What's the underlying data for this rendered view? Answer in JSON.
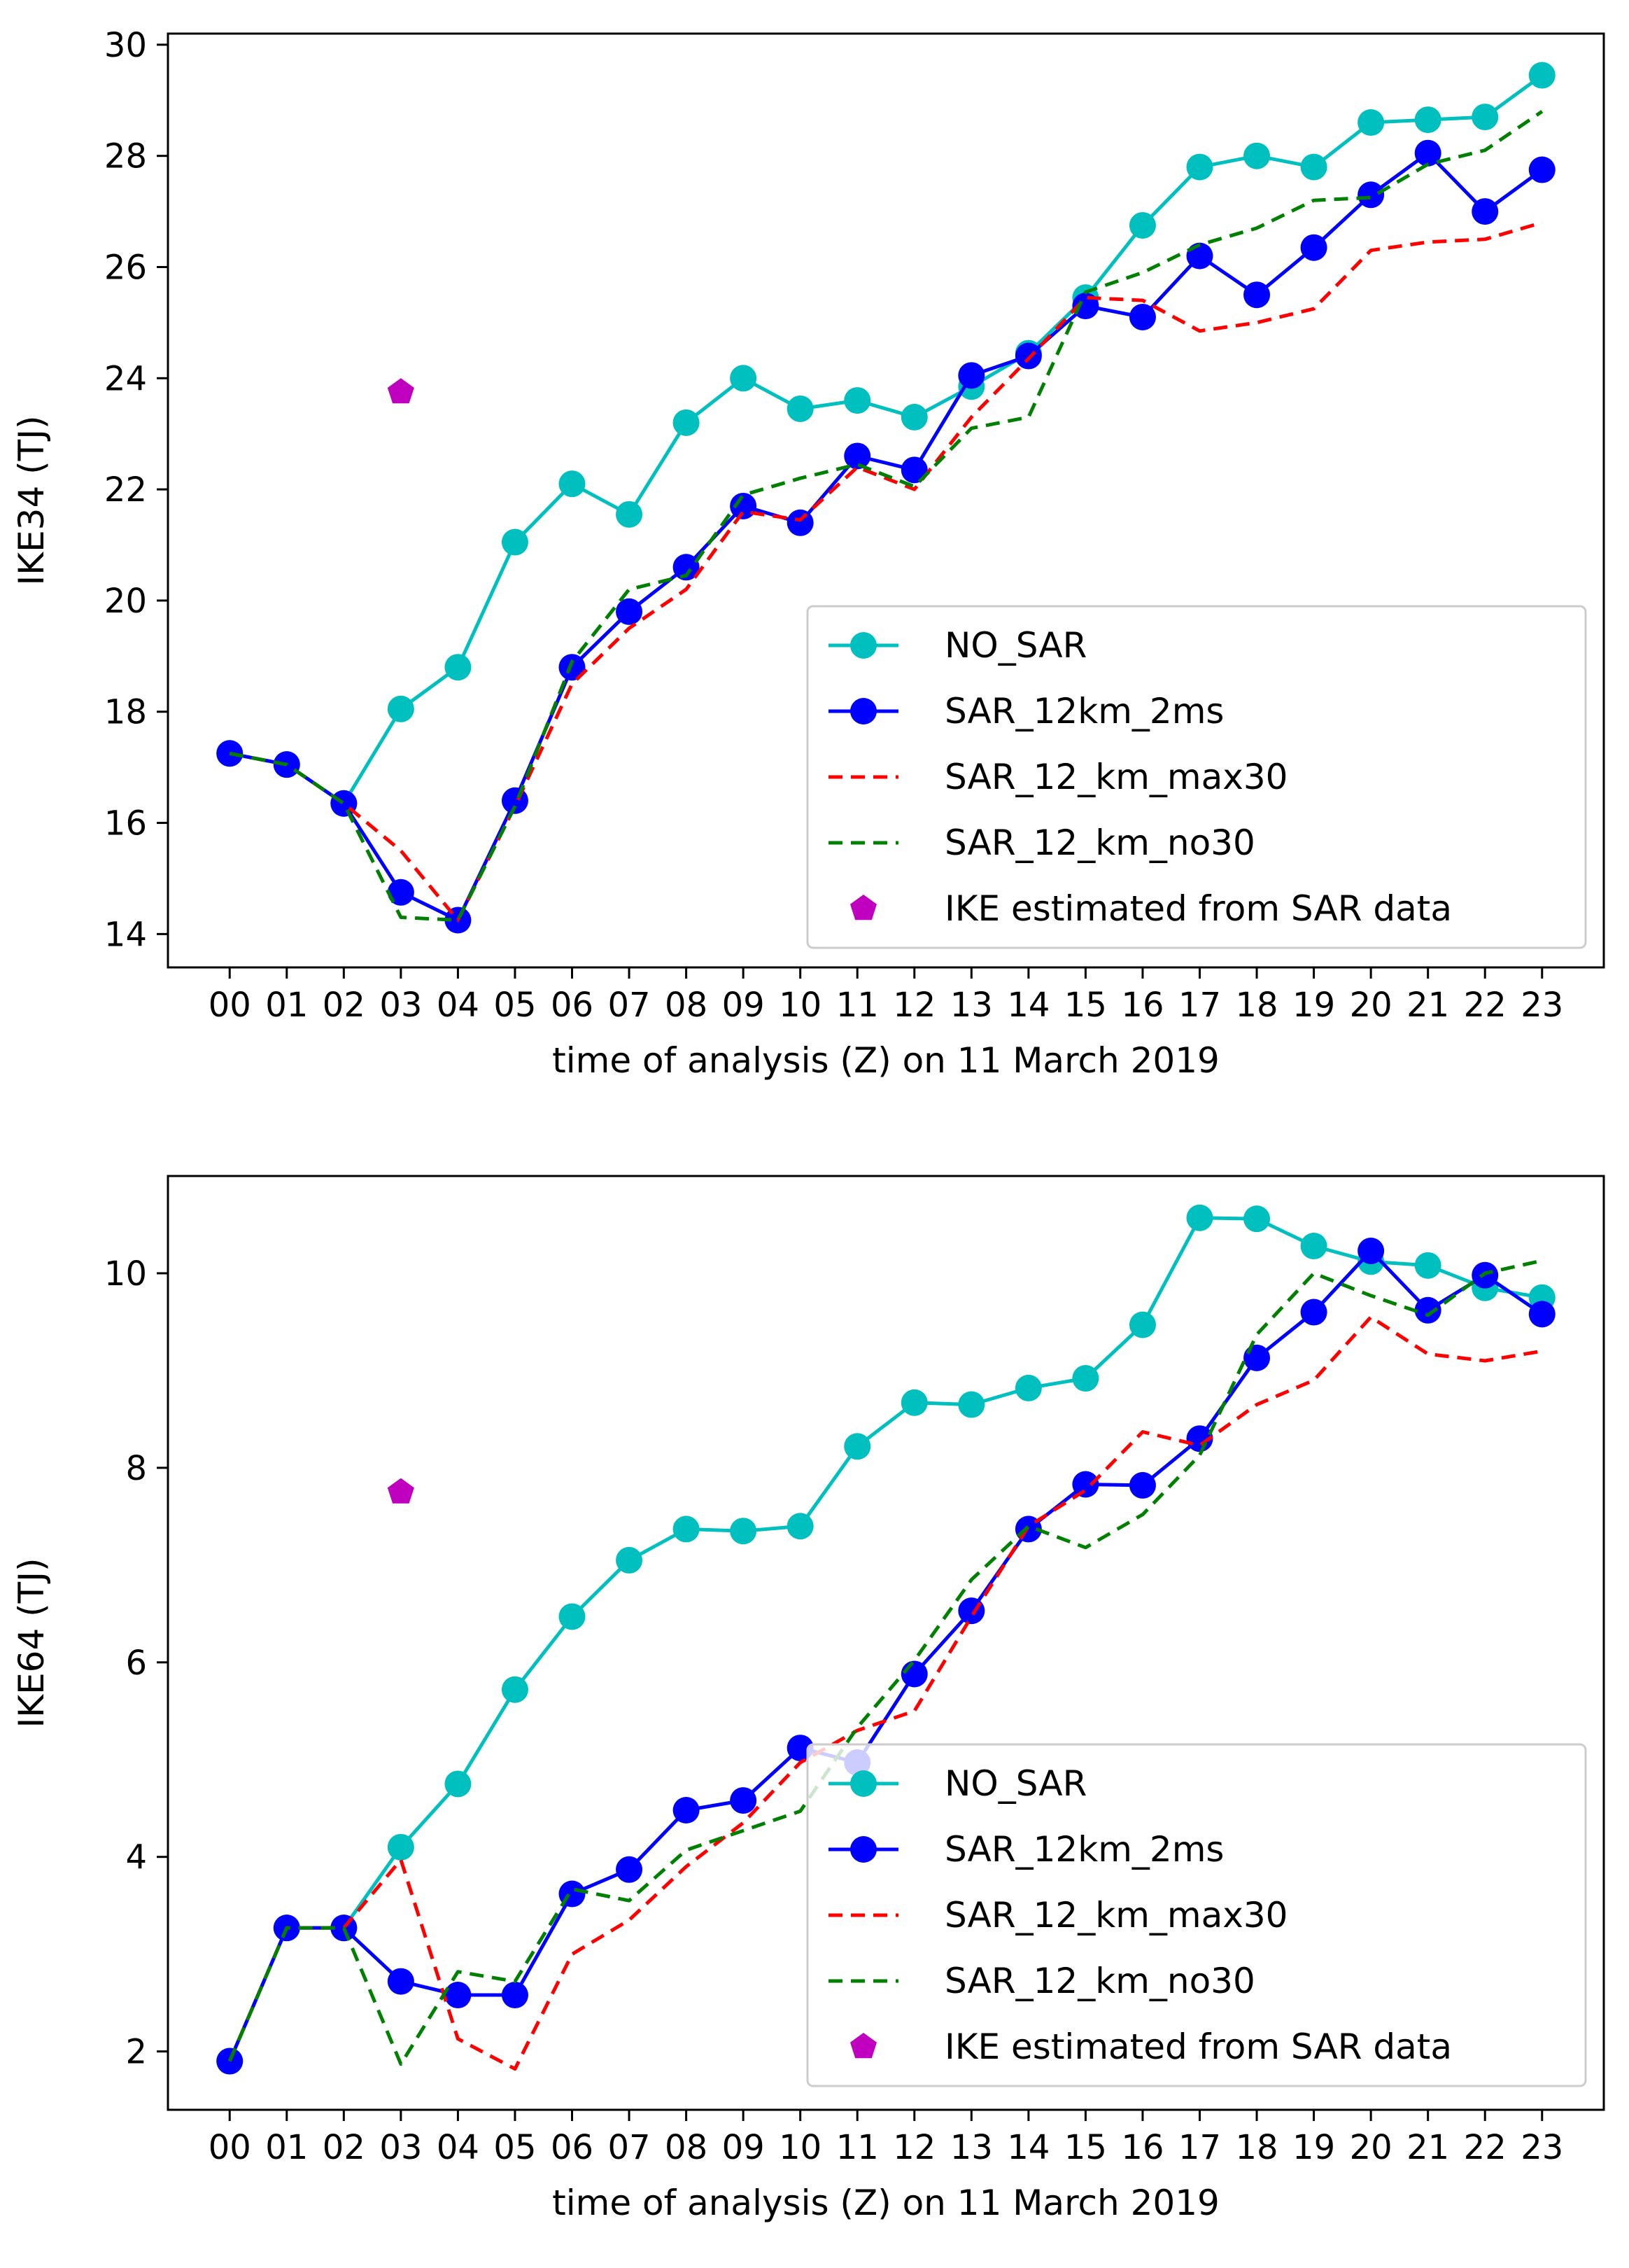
{
  "chart_data": [
    {
      "type": "line",
      "categories": [
        "00",
        "01",
        "02",
        "03",
        "04",
        "05",
        "06",
        "07",
        "08",
        "09",
        "10",
        "11",
        "12",
        "13",
        "14",
        "15",
        "16",
        "17",
        "18",
        "19",
        "20",
        "21",
        "22",
        "23"
      ],
      "xlabel": "time of analysis (Z) on 11 March 2019",
      "ylabel": "IKE34 (TJ)",
      "ylim": [
        13.4,
        30.2
      ],
      "yticks": [
        14,
        16,
        18,
        20,
        22,
        24,
        26,
        28,
        30
      ],
      "grid": false,
      "legend_position": "lower-right",
      "series": [
        {
          "name": "NO_SAR",
          "color": "#00bfbf",
          "style": "solid-marker",
          "values": [
            17.25,
            17.05,
            16.35,
            18.05,
            18.8,
            21.05,
            22.1,
            21.55,
            23.2,
            24.0,
            23.45,
            23.6,
            23.3,
            23.85,
            24.45,
            25.45,
            26.75,
            27.8,
            28.0,
            27.8,
            28.6,
            28.65,
            28.7,
            29.45
          ]
        },
        {
          "name": "SAR_12km_2ms",
          "color": "#0000ff",
          "style": "solid-marker",
          "values": [
            17.25,
            17.05,
            16.35,
            14.75,
            14.25,
            16.4,
            18.8,
            19.8,
            20.6,
            21.7,
            21.4,
            22.6,
            22.35,
            24.05,
            24.4,
            25.3,
            25.1,
            26.2,
            25.5,
            26.35,
            27.3,
            28.05,
            27.0,
            27.75
          ]
        },
        {
          "name": "SAR_12_km_max30",
          "color": "#ff0000",
          "style": "dashed",
          "values": [
            17.25,
            17.05,
            16.35,
            15.5,
            14.25,
            16.3,
            18.5,
            19.5,
            20.2,
            21.6,
            21.45,
            22.4,
            22.0,
            23.3,
            24.35,
            25.45,
            25.4,
            24.85,
            25.0,
            25.25,
            26.3,
            26.45,
            26.5,
            26.8
          ]
        },
        {
          "name": "SAR_12_km_no30",
          "color": "#008000",
          "style": "dashed",
          "values": [
            17.25,
            17.05,
            16.35,
            14.3,
            14.25,
            16.3,
            18.9,
            20.2,
            20.45,
            21.9,
            22.2,
            22.45,
            22.05,
            23.1,
            23.3,
            25.55,
            25.9,
            26.4,
            26.7,
            27.2,
            27.25,
            27.85,
            28.1,
            28.8
          ]
        }
      ],
      "points": {
        "name": "IKE estimated from SAR data",
        "color": "#bf00bf",
        "x": "03",
        "y": 23.75
      }
    },
    {
      "type": "line",
      "categories": [
        "00",
        "01",
        "02",
        "03",
        "04",
        "05",
        "06",
        "07",
        "08",
        "09",
        "10",
        "11",
        "12",
        "13",
        "14",
        "15",
        "16",
        "17",
        "18",
        "19",
        "20",
        "21",
        "22",
        "23"
      ],
      "xlabel": "time of analysis (Z) on 11 March 2019",
      "ylabel": "IKE64 (TJ)",
      "ylim": [
        1.4,
        11.0
      ],
      "yticks": [
        2,
        4,
        6,
        8,
        10
      ],
      "grid": false,
      "legend_position": "lower-right",
      "series": [
        {
          "name": "NO_SAR",
          "color": "#00bfbf",
          "style": "solid-marker",
          "values": [
            1.9,
            3.27,
            3.27,
            4.1,
            4.75,
            5.72,
            6.47,
            7.05,
            7.37,
            7.35,
            7.4,
            8.22,
            8.67,
            8.65,
            8.82,
            8.92,
            9.47,
            10.57,
            10.56,
            10.28,
            10.12,
            10.08,
            9.85,
            9.75
          ]
        },
        {
          "name": "SAR_12km_2ms",
          "color": "#0000ff",
          "style": "solid-marker",
          "values": [
            1.9,
            3.27,
            3.27,
            2.72,
            2.58,
            2.58,
            3.62,
            3.87,
            4.48,
            4.58,
            5.12,
            4.97,
            5.88,
            6.53,
            7.37,
            7.83,
            7.82,
            8.3,
            9.13,
            9.6,
            10.23,
            9.62,
            9.98,
            9.58
          ]
        },
        {
          "name": "SAR_12_km_max30",
          "color": "#ff0000",
          "style": "dashed",
          "values": [
            1.9,
            3.27,
            3.27,
            3.97,
            2.13,
            1.82,
            3.0,
            3.35,
            3.9,
            4.35,
            4.97,
            5.3,
            5.5,
            6.47,
            7.4,
            7.77,
            8.37,
            8.23,
            8.65,
            8.9,
            9.55,
            9.17,
            9.1,
            9.2
          ]
        },
        {
          "name": "SAR_12_km_no30",
          "color": "#008000",
          "style": "dashed",
          "values": [
            1.9,
            3.27,
            3.27,
            1.87,
            2.82,
            2.72,
            3.67,
            3.55,
            4.07,
            4.27,
            4.47,
            5.33,
            6.02,
            6.85,
            7.4,
            7.18,
            7.52,
            8.13,
            9.37,
            10.0,
            9.77,
            9.57,
            10.0,
            10.13
          ]
        }
      ],
      "points": {
        "name": "IKE estimated from SAR data",
        "color": "#bf00bf",
        "x": "03",
        "y": 7.75
      }
    }
  ]
}
